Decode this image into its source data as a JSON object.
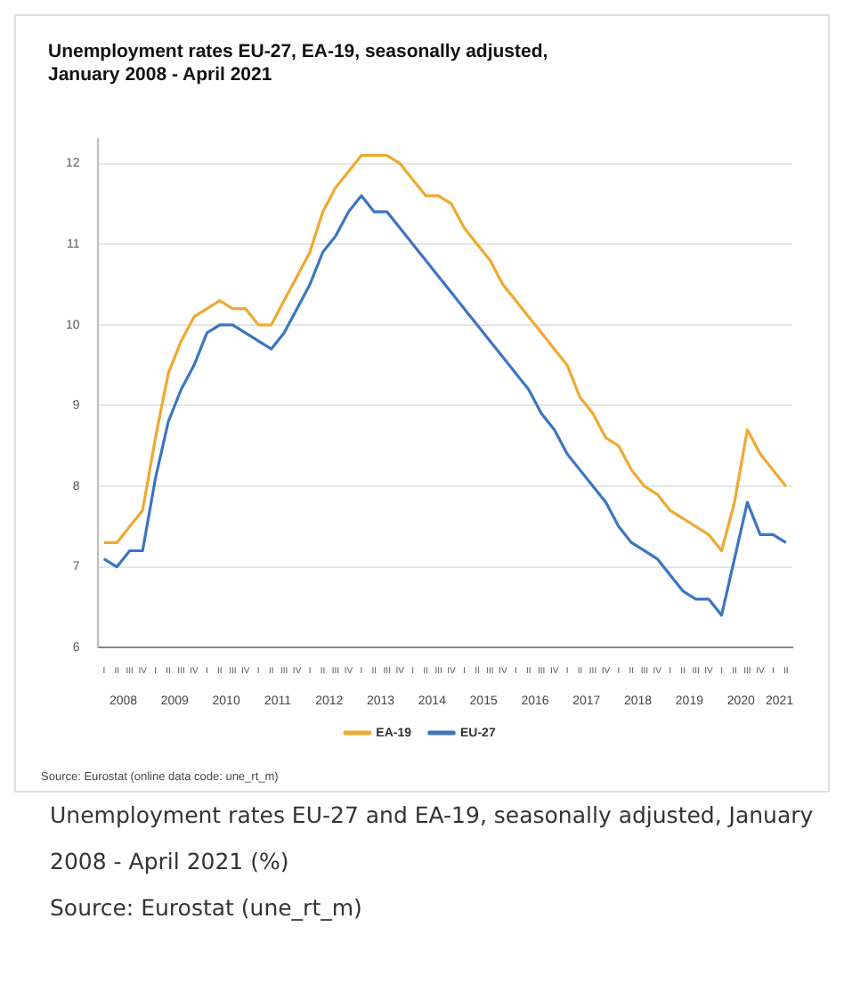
{
  "chart_data": {
    "type": "line",
    "title": "Unemployment rates EU-27, EA-19, seasonally adjusted, January 2008 - April 2021",
    "categories": [
      "I",
      "II",
      "III",
      "IV",
      "I",
      "II",
      "III",
      "IV",
      "I",
      "II",
      "III",
      "IV",
      "I",
      "II",
      "III",
      "IV",
      "I",
      "II",
      "III",
      "IV",
      "I",
      "II",
      "III",
      "IV",
      "I",
      "II",
      "III",
      "IV",
      "I",
      "II",
      "III",
      "IV",
      "I",
      "II",
      "III",
      "IV",
      "I",
      "II",
      "III",
      "IV",
      "I",
      "II",
      "III",
      "IV",
      "I",
      "II",
      "III",
      "IV",
      "I",
      "II",
      "III",
      "IV",
      "I",
      "II"
    ],
    "ylim": [
      6,
      12.3
    ],
    "yticks": [
      6,
      7,
      8,
      9,
      10,
      11,
      12
    ],
    "x2lim": [
      "2008-01",
      "2021-07"
    ],
    "x2ticks": [
      {
        "value": "2008-07-01",
        "label": "2008"
      },
      {
        "value": "2009-07-01",
        "label": "2009"
      },
      {
        "value": "2010-07-01",
        "label": "2010"
      },
      {
        "value": "2011-07-01",
        "label": "2011"
      },
      {
        "value": "2012-07-01",
        "label": "2012"
      },
      {
        "value": "2013-07-01",
        "label": "2013"
      },
      {
        "value": "2014-07-01",
        "label": "2014"
      },
      {
        "value": "2015-07-01",
        "label": "2015"
      },
      {
        "value": "2016-07-01",
        "label": "2016"
      },
      {
        "value": "2017-07-01",
        "label": "2017"
      },
      {
        "value": "2018-07-01",
        "label": "2018"
      },
      {
        "value": "2019-07-01",
        "label": "2019"
      },
      {
        "value": "2020-07-01",
        "label": "2020"
      },
      {
        "value": "2021-04-01",
        "label": "2021"
      }
    ],
    "grid": "y",
    "legend": "bottom",
    "series": [
      {
        "name": "EA-19",
        "color": "#f0a830",
        "values": [
          7.3,
          7.3,
          7.5,
          7.7,
          8.6,
          9.4,
          9.8,
          10.1,
          10.2,
          10.3,
          10.2,
          10.2,
          10.0,
          10.0,
          10.3,
          10.6,
          10.9,
          11.4,
          11.7,
          11.9,
          12.1,
          12.1,
          12.1,
          12.0,
          11.8,
          11.6,
          11.6,
          11.5,
          11.2,
          11.0,
          10.8,
          10.5,
          10.3,
          10.1,
          9.9,
          9.7,
          9.5,
          9.1,
          8.9,
          8.6,
          8.5,
          8.2,
          8.0,
          7.9,
          7.7,
          7.6,
          7.5,
          7.4,
          7.2,
          7.8,
          8.7,
          8.4,
          8.2,
          8.0
        ]
      },
      {
        "name": "EU-27",
        "color": "#3b75c2",
        "values": [
          7.1,
          7.0,
          7.2,
          7.2,
          8.1,
          8.8,
          9.2,
          9.5,
          9.9,
          10.0,
          10.0,
          9.9,
          9.8,
          9.7,
          9.9,
          10.2,
          10.5,
          10.9,
          11.1,
          11.4,
          11.6,
          11.4,
          11.4,
          11.2,
          11.0,
          10.8,
          10.6,
          10.4,
          10.2,
          10.0,
          9.8,
          9.6,
          9.4,
          9.2,
          8.9,
          8.7,
          8.4,
          8.2,
          8.0,
          7.8,
          7.5,
          7.3,
          7.2,
          7.1,
          6.9,
          6.7,
          6.6,
          6.6,
          6.4,
          7.1,
          7.8,
          7.4,
          7.4,
          7.3
        ]
      }
    ],
    "annotations": [
      "Source: Eurostat (online data code: une_rt_m)",
      "Unemployment rates EU-27 and EA-19, seasonally adjusted, January 2008 - April 2021 (%)",
      "Source: Eurostat (une_rt_m)"
    ]
  }
}
